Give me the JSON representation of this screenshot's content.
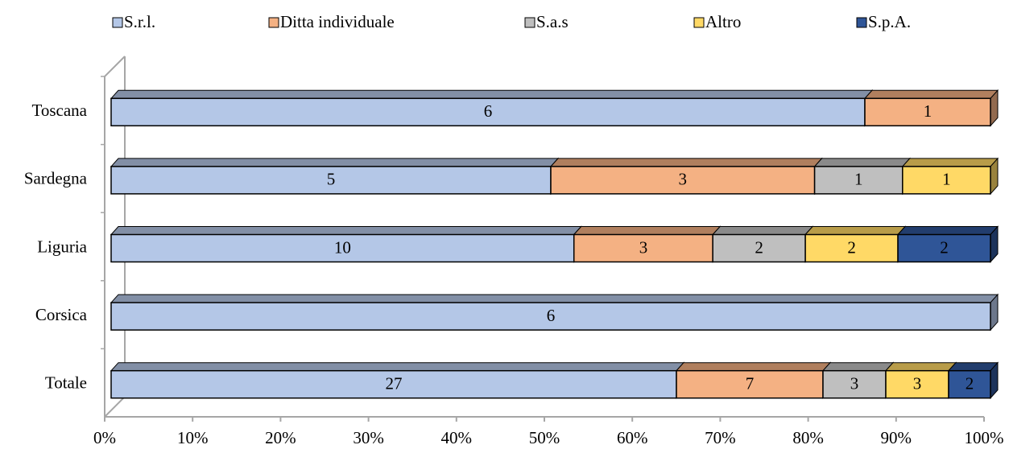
{
  "chart_data": {
    "type": "bar",
    "orientation": "horizontal",
    "stacking": "percent",
    "categories": [
      "Toscana",
      "Sardegna",
      "Liguria",
      "Corsica",
      "Totale"
    ],
    "series": [
      {
        "name": "S.r.l.",
        "color": "#b4c7e7",
        "values": [
          6,
          5,
          10,
          6,
          27
        ]
      },
      {
        "name": "Ditta individuale",
        "color": "#f4b183",
        "values": [
          1,
          3,
          3,
          null,
          7
        ]
      },
      {
        "name": "S.a.s",
        "color": "#bfbfbf",
        "values": [
          null,
          1,
          2,
          null,
          3
        ]
      },
      {
        "name": "Altro",
        "color": "#ffd966",
        "values": [
          null,
          1,
          2,
          null,
          3
        ]
      },
      {
        "name": "S.p.A.",
        "color": "#2f5597",
        "values": [
          null,
          null,
          2,
          null,
          2
        ]
      }
    ],
    "xlim": [
      0,
      100
    ],
    "xticks": [
      {
        "value": 0,
        "label": "0%"
      },
      {
        "value": 10,
        "label": "10%"
      },
      {
        "value": 20,
        "label": "20%"
      },
      {
        "value": 30,
        "label": "30%"
      },
      {
        "value": 40,
        "label": "40%"
      },
      {
        "value": 50,
        "label": "50%"
      },
      {
        "value": 60,
        "label": "60%"
      },
      {
        "value": 70,
        "label": "70%"
      },
      {
        "value": 80,
        "label": "80%"
      },
      {
        "value": 90,
        "label": "90%"
      },
      {
        "value": 100,
        "label": "100%"
      }
    ],
    "legend": "top",
    "grid": false
  }
}
